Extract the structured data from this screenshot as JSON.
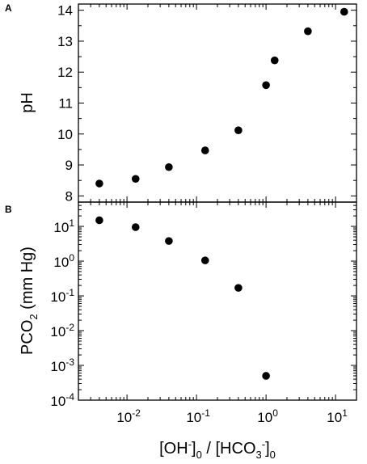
{
  "chart_data": [
    {
      "panel_label": "A",
      "type": "scatter",
      "xscale": "log",
      "xlim": [
        0.002,
        20
      ],
      "ylim": [
        7.8,
        14.2
      ],
      "yticks": [
        8,
        9,
        10,
        11,
        12,
        13,
        14
      ],
      "ylabel": "pH",
      "grid": false,
      "points": [
        {
          "x": 0.004,
          "y": 8.4
        },
        {
          "x": 0.0133,
          "y": 8.55
        },
        {
          "x": 0.04,
          "y": 8.93
        },
        {
          "x": 0.133,
          "y": 9.47
        },
        {
          "x": 0.4,
          "y": 10.12
        },
        {
          "x": 1.0,
          "y": 11.58
        },
        {
          "x": 1.33,
          "y": 12.38
        },
        {
          "x": 4.0,
          "y": 13.32
        },
        {
          "x": 13.3,
          "y": 13.95
        }
      ]
    },
    {
      "panel_label": "B",
      "type": "scatter",
      "xscale": "log",
      "yscale": "log",
      "xlim": [
        0.002,
        20
      ],
      "ylim": [
        0.0001,
        50
      ],
      "xticks": [
        {
          "base": "10",
          "exp": "-2"
        },
        {
          "base": "10",
          "exp": "-1"
        },
        {
          "base": "10",
          "exp": "0"
        },
        {
          "base": "10",
          "exp": "1"
        }
      ],
      "yticks": [
        {
          "base": "10",
          "exp": "1"
        },
        {
          "base": "10",
          "exp": "0"
        },
        {
          "base": "10",
          "exp": "-1"
        },
        {
          "base": "10",
          "exp": "-2"
        },
        {
          "base": "10",
          "exp": "-3"
        },
        {
          "base": "10",
          "exp": "-4"
        }
      ],
      "ylabel": {
        "main": "PCO",
        "sub": "2",
        "rest": " (mm Hg)"
      },
      "xlabel": {
        "a": "[OH",
        "a_sup": "-",
        "b": "]",
        "b_sub": "0",
        "c": " / [HCO",
        "c_sub": "3",
        "c_sup": "-",
        "d": "]",
        "d_sub": "0"
      },
      "grid": false,
      "points": [
        {
          "x": 0.004,
          "y": 15
        },
        {
          "x": 0.0133,
          "y": 9.5
        },
        {
          "x": 0.04,
          "y": 3.8
        },
        {
          "x": 0.133,
          "y": 1.05
        },
        {
          "x": 0.4,
          "y": 0.17
        },
        {
          "x": 1.0,
          "y": 0.0005
        }
      ]
    }
  ]
}
